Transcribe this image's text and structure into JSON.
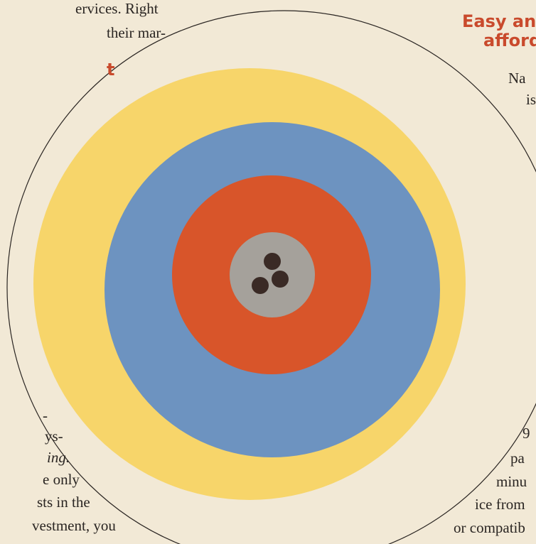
{
  "left_column": {
    "lines": [
      "ervices. Right",
      "their mar-"
    ],
    "heading": "t",
    "lines_lower": [
      "-",
      "ys-",
      "ing.",
      "e only",
      "sts in the",
      "vestment, you"
    ]
  },
  "right_column": {
    "heading": [
      "Easy an",
      "afford"
    ],
    "lines": [
      "Na",
      "is",
      "9",
      "pa",
      "minu",
      "ice from",
      "or compatib"
    ]
  }
}
